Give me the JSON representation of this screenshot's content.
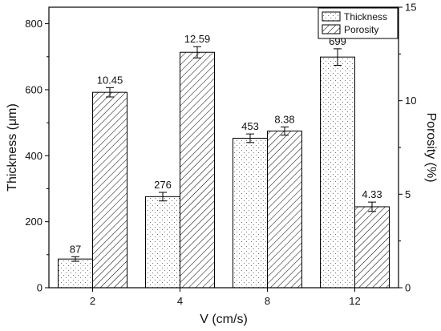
{
  "chart_data": {
    "type": "bar",
    "categories": [
      "2",
      "4",
      "8",
      "12"
    ],
    "xlabel": "V (cm/s)",
    "ylabel_left": "Thickness (μm)",
    "ylabel_right": "Porosity (%)",
    "ylim_left": [
      0,
      850
    ],
    "ylim_right": [
      0,
      15
    ],
    "yticks_left": [
      0,
      200,
      400,
      600,
      800
    ],
    "yticks_right": [
      0,
      5,
      10,
      15
    ],
    "grid": false,
    "legend_position": "top-right",
    "series": [
      {
        "name": "Thickness",
        "axis": "left",
        "pattern": "dots",
        "values": [
          87,
          276,
          453,
          699
        ],
        "labels": [
          "87",
          "276",
          "453",
          "699"
        ],
        "errors": [
          7,
          13,
          13,
          25
        ]
      },
      {
        "name": "Porosity",
        "axis": "right",
        "pattern": "hatch",
        "values": [
          10.45,
          12.59,
          8.38,
          4.33
        ],
        "labels": [
          "10.45",
          "12.59",
          "8.38",
          "4.33"
        ],
        "errors": [
          0.25,
          0.3,
          0.22,
          0.25
        ]
      }
    ]
  }
}
